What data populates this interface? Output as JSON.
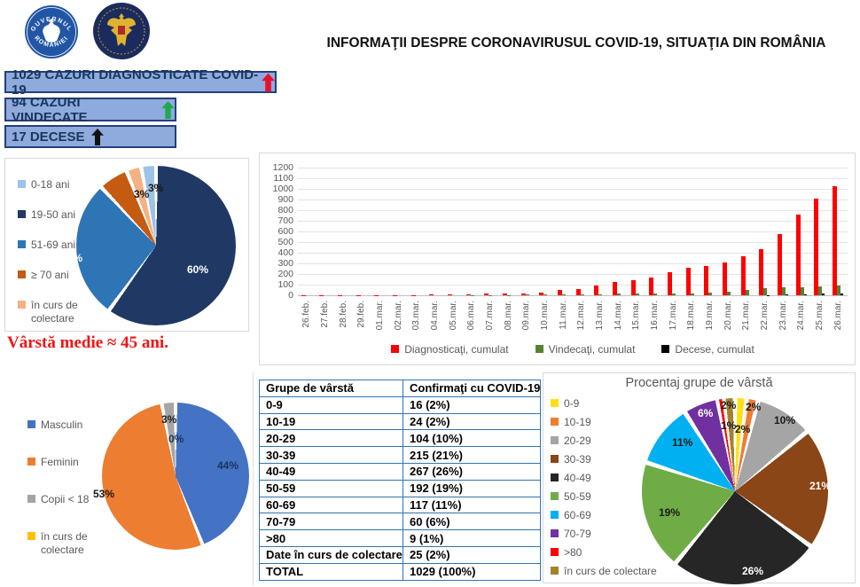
{
  "header": {
    "title": "INFORMAŢII DESPRE CORONAVIRUSUL COVID-19, SITUAŢIA DIN ROMÂNIA",
    "logo1": {
      "name": "guvernul-romaniei-logo",
      "text_top": "GUVERNUL",
      "text_bottom": "ROMÂNIEI"
    },
    "logo2": {
      "name": "ministerul-afacerilor-interne-logo"
    }
  },
  "stat_boxes": [
    {
      "label": "1029 CAZURI DIAGNOSTICATE COVID-19",
      "icon": "arrow-up-icon",
      "arrow_color": "#E8112D"
    },
    {
      "label": "94 CAZURI VINDECATE",
      "icon": "arrow-up-icon",
      "arrow_color": "#1FA850"
    },
    {
      "label": "17 DECESE",
      "icon": "arrow-up-icon",
      "arrow_color": "#111111"
    }
  ],
  "note": {
    "text": "Vârstă medie ≈ 45 ani.",
    "color": "#F01414"
  },
  "chart_data": [
    {
      "id": "age-groups-pie",
      "type": "pie",
      "title": "",
      "legend_position": "left",
      "labels": [
        "0-18 ani",
        "19-50 ani",
        "51-69 ani",
        "≥ 70 ani",
        "în curs de colectare"
      ],
      "values": [
        3,
        60,
        28,
        6,
        3
      ],
      "colors": [
        "#9DC3E6",
        "#1F3864",
        "#2E75B6",
        "#C55A11",
        "#F4B183"
      ],
      "data_labels": [
        "3%",
        "60%",
        "28%",
        "6%",
        "3%"
      ]
    },
    {
      "id": "cumulative-bars",
      "type": "bar",
      "title": "",
      "legend_position": "bottom",
      "ylim": [
        0,
        1200
      ],
      "ytick_step": 100,
      "grid": true,
      "x": [
        "26.feb.",
        "27.feb.",
        "28.feb.",
        "29.feb.",
        "01.mar.",
        "02.mar.",
        "03.mar.",
        "04.mar.",
        "05.mar.",
        "06.mar.",
        "07.mar.",
        "08.mar.",
        "09.mar.",
        "10.mar.",
        "11.mar.",
        "12.mar.",
        "13.mar.",
        "14.mar.",
        "15.mar.",
        "16.mar.",
        "17.mar.",
        "18.mar.",
        "19.mar.",
        "20.mar.",
        "21.mar.",
        "22.mar.",
        "23.mar.",
        "24.mar.",
        "25.mar.",
        "26.mar."
      ],
      "series": [
        {
          "name": "Diagnosticaţi, cumulat",
          "color": "#FF0000",
          "values": [
            1,
            1,
            3,
            3,
            3,
            3,
            4,
            6,
            6,
            9,
            13,
            15,
            15,
            29,
            47,
            59,
            95,
            123,
            139,
            168,
            217,
            260,
            277,
            308,
            367,
            433,
            576,
            762,
            906,
            1029
          ]
        },
        {
          "name": "Vindecaţi, cumulat",
          "color": "#548235",
          "values": [
            0,
            0,
            0,
            0,
            0,
            0,
            0,
            0,
            0,
            1,
            1,
            3,
            5,
            6,
            6,
            9,
            9,
            16,
            16,
            19,
            19,
            19,
            25,
            31,
            52,
            64,
            73,
            79,
            86,
            94
          ]
        },
        {
          "name": "Decese, cumulat",
          "color": "#000000",
          "values": [
            0,
            0,
            0,
            0,
            0,
            0,
            0,
            0,
            0,
            0,
            0,
            0,
            0,
            0,
            0,
            0,
            0,
            0,
            0,
            0,
            0,
            0,
            0,
            0,
            0,
            3,
            7,
            11,
            17,
            17
          ]
        }
      ]
    },
    {
      "id": "gender-pie",
      "type": "pie",
      "title": "",
      "legend_position": "left",
      "labels": [
        "Masculin",
        "Feminin",
        "Copii < 18",
        "în curs de colectare"
      ],
      "values": [
        44,
        53,
        3,
        0
      ],
      "colors": [
        "#4472C4",
        "#ED7D31",
        "#A5A5A5",
        "#FFC000"
      ],
      "data_labels": [
        "44%",
        "53%",
        "3%",
        "0%"
      ]
    },
    {
      "id": "age-decade-pie",
      "type": "pie",
      "title": "Procentaj grupe de vârstă",
      "legend_position": "left",
      "labels": [
        "0-9",
        "10-19",
        "20-29",
        "30-39",
        "40-49",
        "50-59",
        "60-69",
        "70-79",
        ">80",
        "în curs de colectare"
      ],
      "values": [
        2,
        2,
        10,
        21,
        26,
        19,
        11,
        6,
        1,
        2
      ],
      "colors": [
        "#FFE016",
        "#ED7D31",
        "#A5A5A5",
        "#8A4616",
        "#262626",
        "#6FAC46",
        "#00B0F0",
        "#7030A0",
        "#FF0000",
        "#A6812C"
      ],
      "data_labels": [
        "2%",
        "2%",
        "10%",
        "21%",
        "26%",
        "19%",
        "11%",
        "6%",
        "1%",
        "2%"
      ]
    }
  ],
  "table": {
    "headers": [
      "Grupe de vârstă",
      "Confirmaţi cu COVID-19"
    ],
    "rows": [
      [
        "0-9",
        "16 (2%)"
      ],
      [
        "10-19",
        "24 (2%)"
      ],
      [
        "20-29",
        "104 (10%)"
      ],
      [
        "30-39",
        "215 (21%)"
      ],
      [
        "40-49",
        "267 (26%)"
      ],
      [
        "50-59",
        "192 (19%)"
      ],
      [
        "60-69",
        "117 (11%)"
      ],
      [
        "70-79",
        "60 (6%)"
      ],
      [
        ">80",
        "9 (1%)"
      ],
      [
        "Date în curs de colectare",
        "25 (2%)"
      ],
      [
        "TOTAL",
        "1029 (100%)"
      ]
    ]
  }
}
